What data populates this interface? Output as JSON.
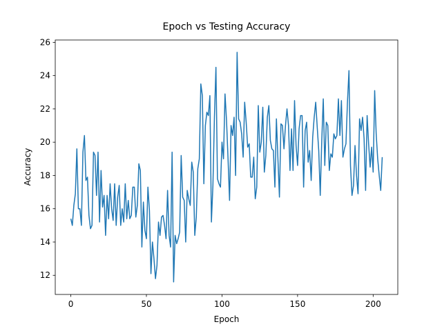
{
  "chart_data": {
    "type": "line",
    "title": "Epoch vs Testing Accuracy",
    "x_label": "Epoch",
    "y_label": "Accuracy",
    "color": "#1f77b4",
    "values": [
      15.4,
      15.0,
      16.2,
      16.9,
      19.6,
      16.0,
      16.0,
      15.0,
      19.4,
      20.4,
      17.7,
      17.9,
      15.6,
      14.8,
      15.0,
      19.4,
      19.2,
      16.8,
      19.4,
      15.2,
      18.3,
      16.1,
      16.8,
      14.4,
      16.8,
      15.4,
      17.5,
      16.0,
      15.3,
      17.5,
      15.0,
      16.7,
      17.4,
      15.0,
      16.0,
      15.2,
      17.5,
      15.4,
      16.5,
      15.4,
      15.6,
      17.3,
      17.3,
      15.5,
      16.2,
      18.7,
      18.3,
      13.7,
      16.4,
      14.7,
      14.2,
      17.3,
      15.9,
      12.1,
      14.0,
      13.0,
      11.8,
      12.6,
      15.2,
      14.4,
      15.5,
      15.6,
      15.0,
      14.2,
      17.1,
      14.4,
      13.7,
      19.4,
      11.6,
      14.4,
      13.9,
      14.2,
      14.6,
      19.2,
      16.7,
      16.5,
      14.0,
      17.1,
      16.6,
      16.2,
      18.8,
      18.2,
      14.4,
      15.5,
      18.4,
      19.0,
      23.5,
      22.8,
      17.5,
      21.0,
      21.8,
      21.6,
      22.8,
      15.2,
      17.4,
      21.5,
      24.5,
      17.8,
      17.5,
      17.3,
      20.0,
      19.0,
      22.9,
      21.3,
      19.0,
      16.5,
      21.0,
      20.4,
      21.5,
      18.0,
      25.4,
      21.4,
      21.2,
      20.5,
      19.1,
      22.4,
      21.2,
      19.7,
      19.9,
      17.9,
      17.9,
      19.1,
      16.6,
      17.3,
      22.2,
      19.4,
      20.0,
      22.1,
      18.2,
      19.2,
      21.5,
      22.2,
      20.1,
      19.6,
      19.5,
      17.3,
      21.4,
      19.0,
      16.7,
      21.1,
      21.0,
      19.6,
      21.0,
      22.0,
      21.0,
      18.3,
      20.8,
      18.3,
      22.5,
      19.8,
      18.6,
      20.8,
      21.6,
      21.6,
      17.3,
      20.7,
      21.2,
      18.8,
      19.5,
      17.7,
      20.3,
      21.5,
      22.4,
      20.9,
      19.5,
      16.8,
      20.1,
      22.6,
      18.6,
      21.2,
      21.0,
      18.3,
      19.3,
      19.1,
      20.5,
      20.2,
      20.4,
      22.6,
      20.4,
      22.5,
      19.1,
      19.6,
      19.9,
      22.4,
      24.3,
      18.6,
      16.8,
      17.4,
      19.8,
      18.0,
      16.9,
      21.4,
      20.7,
      21.5,
      20.2,
      17.1,
      21.6,
      19.9,
      18.5,
      19.7,
      18.2,
      23.1,
      20.5,
      19.0,
      18.0,
      17.1,
      19.1
    ],
    "xlim": [
      -10.3,
      216.3
    ],
    "xticks": [
      0,
      50,
      100,
      150,
      200
    ],
    "ylim": [
      10.85,
      26.14
    ],
    "yticks": [
      12,
      14,
      16,
      18,
      20,
      22,
      24,
      26
    ]
  }
}
